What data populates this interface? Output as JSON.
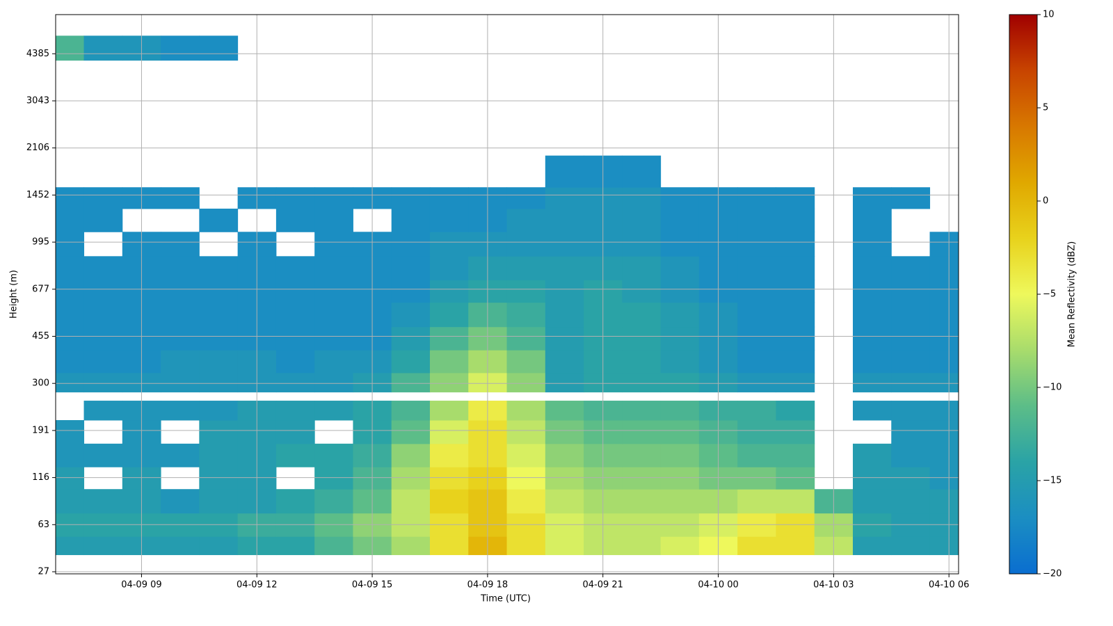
{
  "chart_data": {
    "type": "heatmap",
    "xlabel": "Time (UTC)",
    "ylabel": "Height (m)",
    "colorbar_label": "Mean Reflectivity (dBZ)",
    "xlim": [
      "04-09 06:46",
      "04-10 06:15"
    ],
    "xticks": [
      "04-09 09",
      "04-09 12",
      "04-09 15",
      "04-09 18",
      "04-09 21",
      "04-10 00",
      "04-10 03",
      "04-10 06"
    ],
    "yticks": [
      27,
      63,
      116,
      191,
      300,
      455,
      677,
      995,
      1452,
      2106,
      3043,
      4385
    ],
    "grid": true,
    "clim": [
      -20,
      10
    ],
    "cticks": [
      {
        "value": -20,
        "label": "−20"
      },
      {
        "value": -15,
        "label": "−15"
      },
      {
        "value": -10,
        "label": "−10"
      },
      {
        "value": -5,
        "label": "−5"
      },
      0,
      5,
      10
    ],
    "colormap": [
      "#0a6ed0",
      "#1b8ec2",
      "#2aa3a6",
      "#5cbd88",
      "#a8dc6c",
      "#eef85c",
      "#e8d21c",
      "#e0a800",
      "#d87800",
      "#c84400",
      "#a00000"
    ],
    "x": [
      "04-09 07",
      "04-09 08",
      "04-09 09",
      "04-09 10",
      "04-09 11",
      "04-09 12",
      "04-09 13",
      "04-09 14",
      "04-09 15",
      "04-09 16",
      "04-09 17",
      "04-09 18",
      "04-09 19",
      "04-09 20",
      "04-09 21",
      "04-09 22",
      "04-09 23",
      "04-10 00",
      "04-10 01",
      "04-10 02",
      "04-10 03",
      "04-10 04",
      "04-10 05",
      "04-10 06"
    ],
    "y_bins": [
      40,
      54,
      76,
      103,
      133,
      170,
      215,
      260,
      280,
      335,
      410,
      500,
      615,
      740,
      900,
      1095,
      1320,
      1560,
      2000,
      4200,
      4900
    ],
    "values": [
      [
        -15,
        -15,
        -15,
        -15,
        -15,
        -14,
        -14,
        -12,
        -10,
        -8,
        -3,
        0,
        -3,
        -6,
        -7,
        -7,
        -6,
        -5,
        -3,
        -3,
        -7,
        -15,
        -15,
        -15
      ],
      [
        -14,
        -14,
        -14,
        -14,
        -14,
        -13,
        -13,
        -11,
        -9,
        -7,
        -3,
        -1,
        -3,
        -6,
        -7,
        -7,
        -7,
        -6,
        -4,
        -3,
        -8,
        -14,
        -15,
        -15
      ],
      [
        -15,
        -15,
        -15,
        -16,
        -15,
        -15,
        -14,
        -13,
        -11,
        -7,
        -2,
        -1,
        -4,
        -7,
        -8,
        -8,
        -8,
        -8,
        -7,
        -7,
        -12,
        -15,
        -15,
        -15
      ],
      [
        -15,
        null,
        -15,
        null,
        -15,
        -15,
        null,
        -14,
        -12,
        -8,
        -3,
        -2,
        -5,
        -8,
        -9,
        -9,
        -9,
        -10,
        -10,
        -11,
        null,
        -15,
        -15,
        -16
      ],
      [
        -16,
        -16,
        -16,
        -16,
        -15,
        -15,
        -14,
        -14,
        -13,
        -9,
        -4,
        -3,
        -6,
        -9,
        -10,
        -10,
        -10,
        -11,
        -12,
        -12,
        null,
        -15,
        -16,
        -16
      ],
      [
        -16,
        null,
        -16,
        null,
        -15,
        -15,
        -15,
        null,
        -14,
        -11,
        -6,
        -3,
        -7,
        -10,
        -11,
        -11,
        -11,
        -12,
        -13,
        -13,
        null,
        null,
        -16,
        -16
      ],
      [
        null,
        -16,
        -16,
        -16,
        -16,
        -15,
        -15,
        -15,
        -14,
        -12,
        -8,
        -4,
        -8,
        -11,
        -12,
        -12,
        -12,
        -13,
        -13,
        -14,
        null,
        -16,
        -16,
        -16
      ],
      [
        null,
        null,
        null,
        null,
        null,
        null,
        null,
        null,
        null,
        null,
        null,
        null,
        null,
        null,
        null,
        null,
        null,
        null,
        null,
        null,
        null,
        null,
        null,
        null
      ],
      [
        -16,
        -16,
        -16,
        -16,
        -16,
        -16,
        -16,
        -16,
        -15,
        -12,
        -9,
        -6,
        -9,
        -15,
        -14,
        -14,
        -14,
        -15,
        -16,
        -16,
        null,
        -16,
        -16,
        -16
      ],
      [
        -17,
        -17,
        -17,
        -16,
        -16,
        -16,
        -17,
        -16,
        -16,
        -14,
        -10,
        -8,
        -10,
        -15,
        -14,
        -14,
        -15,
        -16,
        -17,
        -17,
        null,
        -17,
        -17,
        -17
      ],
      [
        -17,
        -17,
        -17,
        -17,
        -17,
        -17,
        -17,
        -17,
        -17,
        -15,
        -12,
        -10,
        -12,
        -15,
        -14,
        -14,
        -15,
        -16,
        -17,
        -17,
        null,
        -17,
        -17,
        -17
      ],
      [
        -17,
        -17,
        -17,
        -17,
        -17,
        -17,
        -17,
        -17,
        -17,
        -16,
        -14,
        -12,
        -13,
        -15,
        -14,
        -14,
        -15,
        -16,
        -17,
        -17,
        null,
        -17,
        -17,
        -17
      ],
      [
        -17,
        -17,
        -17,
        -17,
        -17,
        -17,
        -17,
        -17,
        -17,
        -17,
        -15,
        -14,
        -14,
        -15,
        -14,
        -15,
        -16,
        -17,
        -17,
        -17,
        null,
        -17,
        -17,
        -17
      ],
      [
        -17,
        -17,
        -17,
        -17,
        -17,
        -17,
        -17,
        -17,
        -17,
        -17,
        -16,
        -15,
        -15,
        -15,
        -15,
        -15,
        -16,
        -17,
        -17,
        -17,
        null,
        -17,
        -17,
        -17
      ],
      [
        -17,
        null,
        -17,
        -17,
        null,
        -17,
        null,
        -17,
        -17,
        -17,
        -16,
        -16,
        -16,
        -16,
        -16,
        -16,
        -17,
        -17,
        -17,
        -17,
        null,
        -17,
        null,
        -17
      ],
      [
        -17,
        -17,
        null,
        null,
        -17,
        null,
        -17,
        -17,
        null,
        -17,
        -17,
        -17,
        -16,
        -16,
        -16,
        -16,
        -17,
        -17,
        -17,
        -17,
        null,
        -17,
        null,
        null
      ],
      [
        -17,
        -17,
        -17,
        -17,
        null,
        -17,
        -17,
        -17,
        -17,
        -17,
        -17,
        -17,
        -17,
        -16,
        -16,
        -16,
        -17,
        -17,
        -17,
        -17,
        null,
        -17,
        -17,
        null
      ],
      [
        null,
        null,
        null,
        null,
        null,
        null,
        null,
        null,
        null,
        null,
        null,
        null,
        null,
        -17,
        -17,
        -17,
        null,
        null,
        null,
        null,
        null,
        null,
        null,
        null
      ],
      [
        null,
        null,
        null,
        null,
        null,
        null,
        null,
        null,
        null,
        null,
        null,
        null,
        null,
        null,
        null,
        null,
        null,
        null,
        null,
        null,
        null,
        null,
        null,
        null
      ],
      [
        -12,
        -16,
        -16,
        -17,
        -17,
        null,
        null,
        null,
        null,
        null,
        null,
        null,
        null,
        null,
        null,
        null,
        null,
        null,
        null,
        null,
        null,
        null,
        null,
        null
      ]
    ]
  }
}
